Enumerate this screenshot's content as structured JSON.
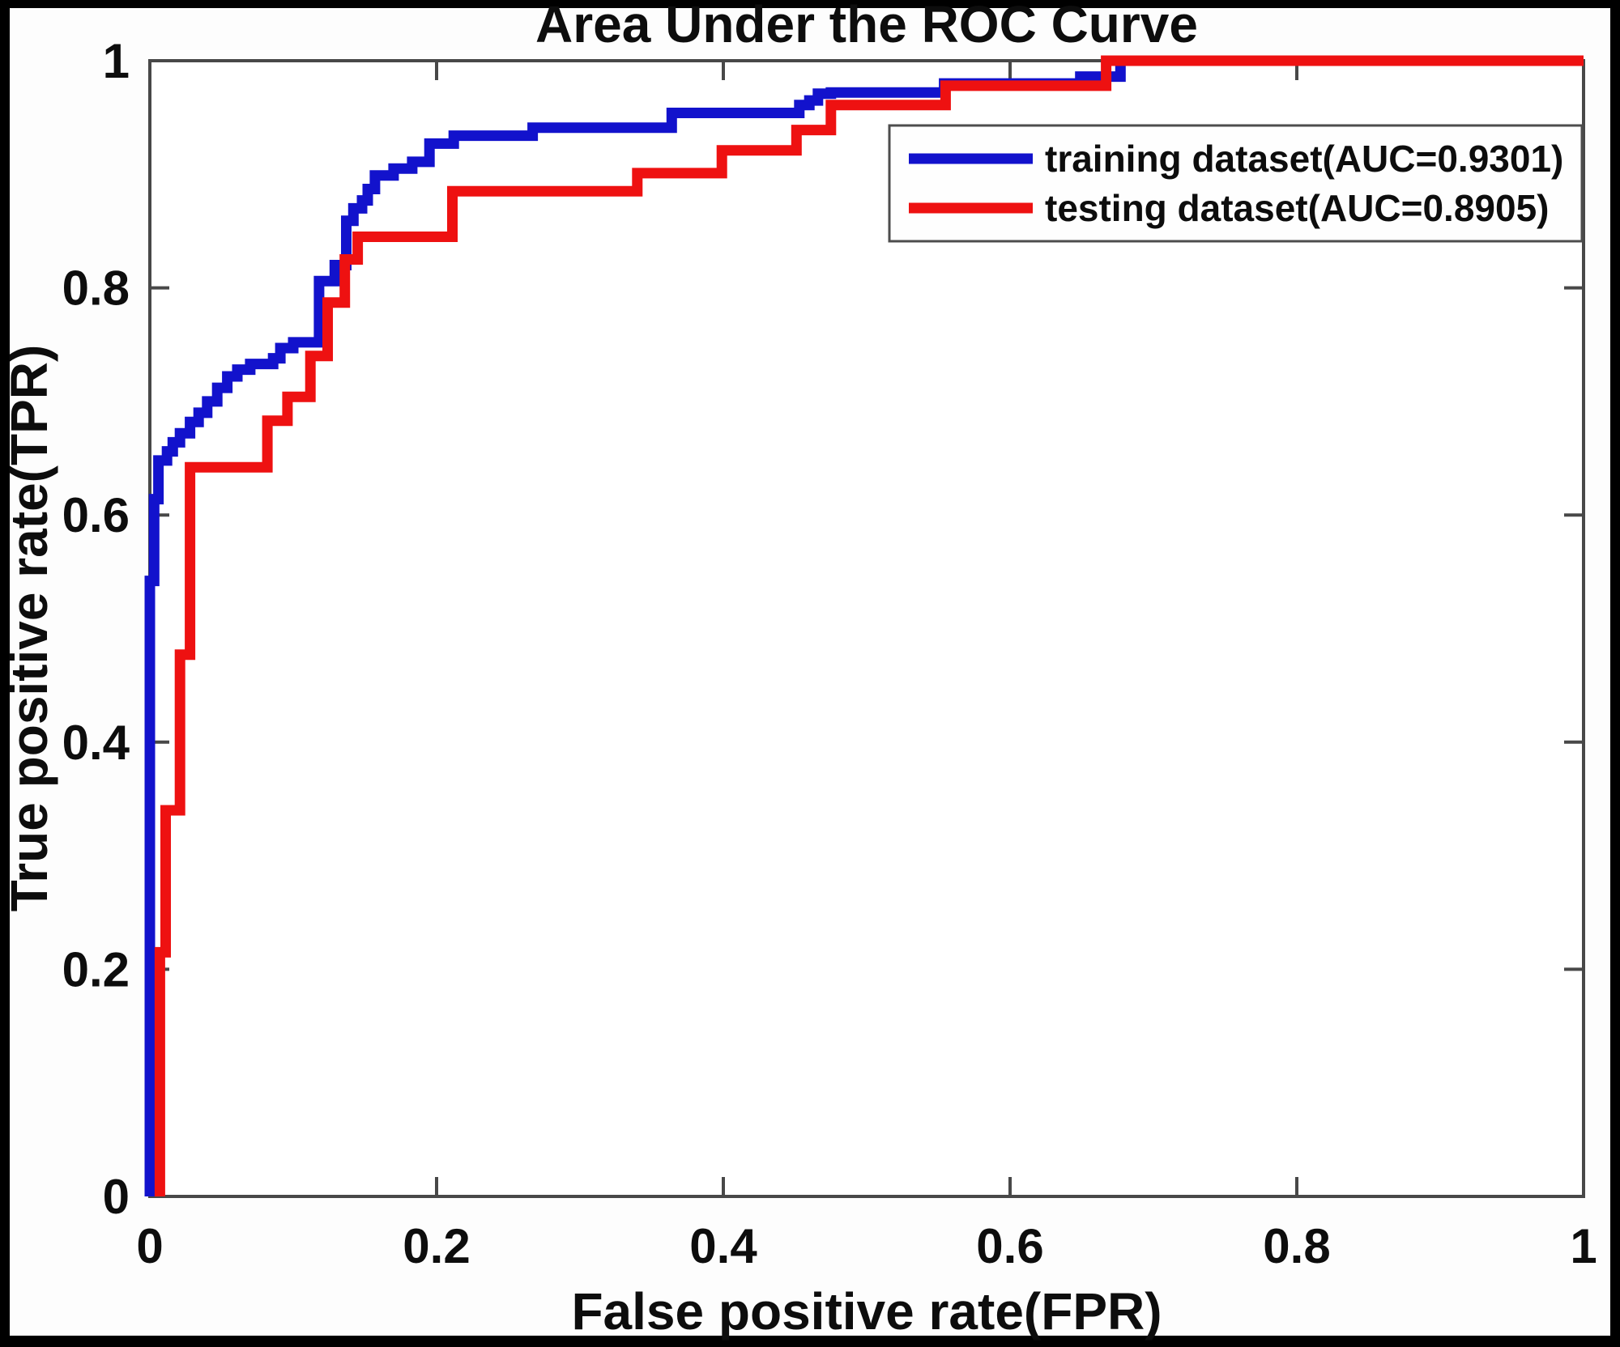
{
  "title": "Area Under the ROC Curve",
  "x_axis": {
    "label": "False positive rate(FPR)",
    "ticks": [
      "0",
      "0.2",
      "0.4",
      "0.6",
      "0.8",
      "1"
    ],
    "tick_values": [
      0,
      0.2,
      0.4,
      0.6,
      0.8,
      1
    ]
  },
  "y_axis": {
    "label": "True positive rate(TPR)",
    "ticks": [
      "0",
      "0.2",
      "0.4",
      "0.6",
      "0.8",
      "1"
    ],
    "tick_values": [
      0,
      0.2,
      0.4,
      0.6,
      0.8,
      1
    ]
  },
  "legend": {
    "entries": [
      {
        "label": "training dataset(AUC=0.9301)",
        "color": "#1212cc"
      },
      {
        "label": "testing dataset(AUC=0.8905)",
        "color": "#ee1111"
      }
    ]
  },
  "colors": {
    "training_curve": "#1212cc",
    "testing_curve": "#ee1111",
    "axis_box": "#484848",
    "text": "#0d0d0d",
    "background": "#fdfdfd",
    "outer_frame": "#000000"
  },
  "chart_data": {
    "type": "line",
    "subtype": "roc-step-curves",
    "title": "Area Under the ROC Curve",
    "xlabel": "False positive rate(FPR)",
    "ylabel": "True positive rate(TPR)",
    "xlim": [
      0,
      1
    ],
    "ylim": [
      0,
      1
    ],
    "grid": false,
    "legend_position": "upper right",
    "series": [
      {
        "name": "training dataset(AUC=0.9301)",
        "auc": 0.9301,
        "color": "#1212cc",
        "points": [
          [
            0.0,
            0.0
          ],
          [
            0.0,
            0.542
          ],
          [
            0.003,
            0.542
          ],
          [
            0.003,
            0.614
          ],
          [
            0.006,
            0.614
          ],
          [
            0.006,
            0.648
          ],
          [
            0.012,
            0.648
          ],
          [
            0.012,
            0.656
          ],
          [
            0.016,
            0.656
          ],
          [
            0.016,
            0.664
          ],
          [
            0.021,
            0.664
          ],
          [
            0.021,
            0.672
          ],
          [
            0.028,
            0.672
          ],
          [
            0.028,
            0.682
          ],
          [
            0.034,
            0.682
          ],
          [
            0.034,
            0.69
          ],
          [
            0.04,
            0.69
          ],
          [
            0.04,
            0.7
          ],
          [
            0.047,
            0.7
          ],
          [
            0.047,
            0.712
          ],
          [
            0.054,
            0.712
          ],
          [
            0.054,
            0.722
          ],
          [
            0.061,
            0.722
          ],
          [
            0.061,
            0.728
          ],
          [
            0.07,
            0.728
          ],
          [
            0.07,
            0.733
          ],
          [
            0.086,
            0.733
          ],
          [
            0.086,
            0.738
          ],
          [
            0.091,
            0.738
          ],
          [
            0.091,
            0.747
          ],
          [
            0.1,
            0.747
          ],
          [
            0.1,
            0.752
          ],
          [
            0.118,
            0.752
          ],
          [
            0.118,
            0.806
          ],
          [
            0.129,
            0.806
          ],
          [
            0.129,
            0.82
          ],
          [
            0.137,
            0.82
          ],
          [
            0.137,
            0.859
          ],
          [
            0.142,
            0.859
          ],
          [
            0.142,
            0.87
          ],
          [
            0.148,
            0.87
          ],
          [
            0.148,
            0.877
          ],
          [
            0.152,
            0.877
          ],
          [
            0.152,
            0.887
          ],
          [
            0.157,
            0.887
          ],
          [
            0.157,
            0.899
          ],
          [
            0.17,
            0.899
          ],
          [
            0.17,
            0.905
          ],
          [
            0.183,
            0.905
          ],
          [
            0.183,
            0.911
          ],
          [
            0.195,
            0.911
          ],
          [
            0.195,
            0.927
          ],
          [
            0.212,
            0.927
          ],
          [
            0.212,
            0.934
          ],
          [
            0.267,
            0.934
          ],
          [
            0.267,
            0.941
          ],
          [
            0.364,
            0.941
          ],
          [
            0.364,
            0.954
          ],
          [
            0.453,
            0.954
          ],
          [
            0.453,
            0.961
          ],
          [
            0.46,
            0.961
          ],
          [
            0.46,
            0.965
          ],
          [
            0.466,
            0.965
          ],
          [
            0.466,
            0.971
          ],
          [
            0.475,
            0.971
          ],
          [
            0.475,
            0.972
          ],
          [
            0.554,
            0.972
          ],
          [
            0.554,
            0.98
          ],
          [
            0.649,
            0.98
          ],
          [
            0.649,
            0.986
          ],
          [
            0.677,
            0.986
          ],
          [
            0.677,
            1.0
          ],
          [
            1.0,
            1.0
          ]
        ]
      },
      {
        "name": "testing dataset(AUC=0.8905)",
        "auc": 0.8905,
        "color": "#ee1111",
        "points": [
          [
            0.007,
            0.0
          ],
          [
            0.007,
            0.215
          ],
          [
            0.011,
            0.215
          ],
          [
            0.011,
            0.34
          ],
          [
            0.021,
            0.34
          ],
          [
            0.021,
            0.477
          ],
          [
            0.028,
            0.477
          ],
          [
            0.028,
            0.642
          ],
          [
            0.082,
            0.642
          ],
          [
            0.082,
            0.683
          ],
          [
            0.096,
            0.683
          ],
          [
            0.096,
            0.704
          ],
          [
            0.112,
            0.704
          ],
          [
            0.112,
            0.74
          ],
          [
            0.124,
            0.74
          ],
          [
            0.124,
            0.787
          ],
          [
            0.136,
            0.787
          ],
          [
            0.136,
            0.825
          ],
          [
            0.145,
            0.825
          ],
          [
            0.145,
            0.845
          ],
          [
            0.211,
            0.845
          ],
          [
            0.211,
            0.885
          ],
          [
            0.34,
            0.885
          ],
          [
            0.34,
            0.901
          ],
          [
            0.399,
            0.901
          ],
          [
            0.399,
            0.921
          ],
          [
            0.451,
            0.921
          ],
          [
            0.451,
            0.939
          ],
          [
            0.475,
            0.939
          ],
          [
            0.475,
            0.961
          ],
          [
            0.555,
            0.961
          ],
          [
            0.555,
            0.978
          ],
          [
            0.667,
            0.978
          ],
          [
            0.667,
            1.0
          ],
          [
            1.0,
            1.0
          ]
        ]
      }
    ]
  }
}
